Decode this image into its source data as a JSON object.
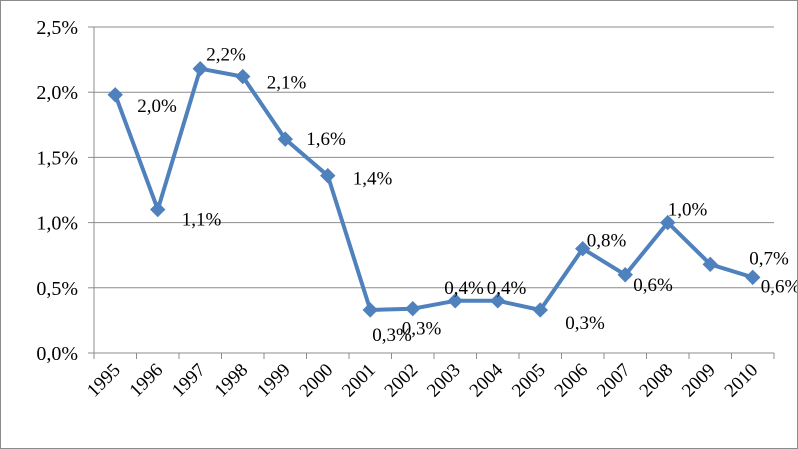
{
  "chart_data": {
    "type": "line",
    "title": "",
    "xlabel": "",
    "ylabel": "",
    "categories": [
      "1995",
      "1996",
      "1997",
      "1998",
      "1999",
      "2000",
      "2001",
      "2002",
      "2003",
      "2004",
      "2005",
      "2006",
      "2007",
      "2008",
      "2009",
      "2010"
    ],
    "series": [
      {
        "values": [
          1.98,
          1.1,
          2.18,
          2.12,
          1.64,
          1.36,
          0.33,
          0.34,
          0.4,
          0.4,
          0.33,
          0.8,
          0.6,
          1.0,
          0.68,
          0.58
        ],
        "data_labels": [
          "2,0%",
          "1,1%",
          "2,2%",
          "2,1%",
          "1,6%",
          "1,4%",
          "0,3%",
          "0,3%",
          "0,4%",
          "0,4%",
          "0,3%",
          "0,8%",
          "0,6%",
          "1,0%",
          "0,7%",
          "0,6%"
        ],
        "color": "#4f81bd",
        "marker": "diamond"
      }
    ],
    "ylim": [
      0,
      2.5
    ],
    "yticks": [
      0,
      0.5,
      1.0,
      1.5,
      2.0,
      2.5
    ],
    "ytick_labels": [
      "0,0%",
      "0,5%",
      "1,0%",
      "1,5%",
      "2,0%",
      "2,5%"
    ],
    "grid": true,
    "legend": "none",
    "axis_color": "#8c8c8c"
  }
}
